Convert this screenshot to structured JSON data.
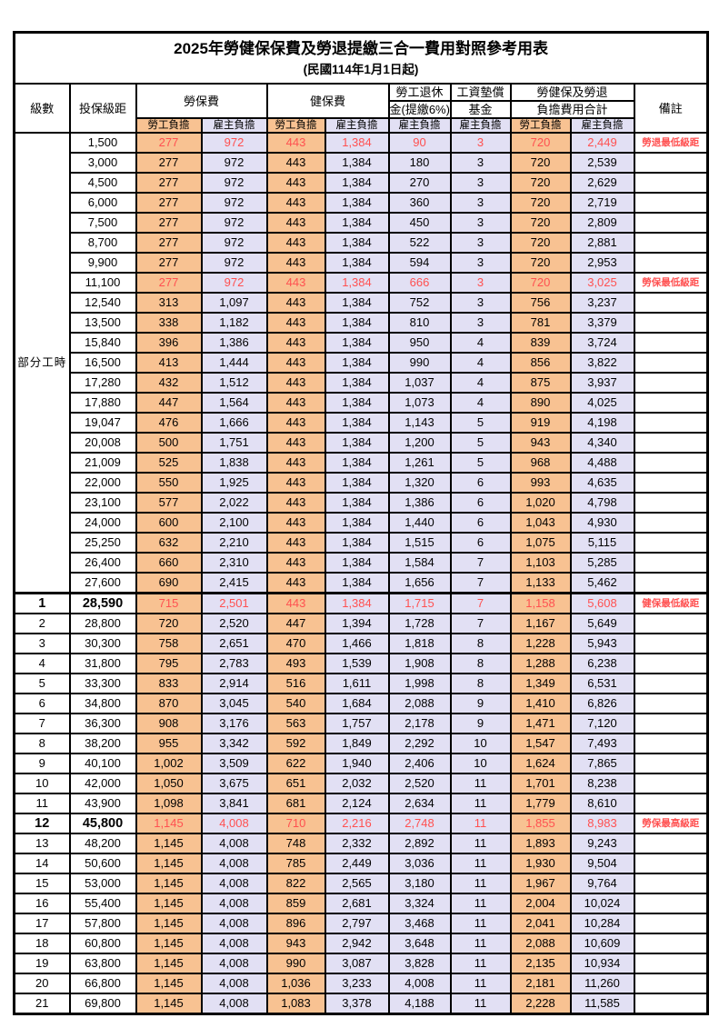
{
  "title": "2025年勞健保保費及勞退提繳三合一費用對照參考用表",
  "subtitle": "(民國114年1月1日起)",
  "colors": {
    "employee_fill": "#F8C292",
    "employer_fill": "#E2E0F4",
    "highlight_text": "#FF5050",
    "grid_border": "#000000"
  },
  "header": {
    "grade": "級數",
    "bracket": "投保級距",
    "labor_insurance": "勞保費",
    "health_insurance": "健保費",
    "pension_line1": "勞工退休",
    "pension_line2": "金(提繳6%)",
    "wage_fund_line1": "工資墊償",
    "wage_fund_line2": "基金",
    "total_line1": "勞健保及勞退",
    "total_line2": "負擔費用合計",
    "remark": "備註",
    "employee_share": "勞工負擔",
    "employer_share": "雇主負擔"
  },
  "part_time": {
    "label": "部分工時",
    "rowspan": 23
  },
  "rows": [
    {
      "bracket": "1,500",
      "values": [
        "277",
        "972",
        "443",
        "1,384",
        "90",
        "3",
        "720",
        "2,449"
      ],
      "red": true,
      "remark": "勞退最低級距"
    },
    {
      "bracket": "3,000",
      "values": [
        "277",
        "972",
        "443",
        "1,384",
        "180",
        "3",
        "720",
        "2,539"
      ]
    },
    {
      "bracket": "4,500",
      "values": [
        "277",
        "972",
        "443",
        "1,384",
        "270",
        "3",
        "720",
        "2,629"
      ]
    },
    {
      "bracket": "6,000",
      "values": [
        "277",
        "972",
        "443",
        "1,384",
        "360",
        "3",
        "720",
        "2,719"
      ]
    },
    {
      "bracket": "7,500",
      "values": [
        "277",
        "972",
        "443",
        "1,384",
        "450",
        "3",
        "720",
        "2,809"
      ]
    },
    {
      "bracket": "8,700",
      "values": [
        "277",
        "972",
        "443",
        "1,384",
        "522",
        "3",
        "720",
        "2,881"
      ]
    },
    {
      "bracket": "9,900",
      "values": [
        "277",
        "972",
        "443",
        "1,384",
        "594",
        "3",
        "720",
        "2,953"
      ]
    },
    {
      "bracket": "11,100",
      "values": [
        "277",
        "972",
        "443",
        "1,384",
        "666",
        "3",
        "720",
        "3,025"
      ],
      "red": true,
      "remark": "勞保最低級距"
    },
    {
      "bracket": "12,540",
      "values": [
        "313",
        "1,097",
        "443",
        "1,384",
        "752",
        "3",
        "756",
        "3,237"
      ]
    },
    {
      "bracket": "13,500",
      "values": [
        "338",
        "1,182",
        "443",
        "1,384",
        "810",
        "3",
        "781",
        "3,379"
      ]
    },
    {
      "bracket": "15,840",
      "values": [
        "396",
        "1,386",
        "443",
        "1,384",
        "950",
        "4",
        "839",
        "3,724"
      ]
    },
    {
      "bracket": "16,500",
      "values": [
        "413",
        "1,444",
        "443",
        "1,384",
        "990",
        "4",
        "856",
        "3,822"
      ]
    },
    {
      "bracket": "17,280",
      "values": [
        "432",
        "1,512",
        "443",
        "1,384",
        "1,037",
        "4",
        "875",
        "3,937"
      ]
    },
    {
      "bracket": "17,880",
      "values": [
        "447",
        "1,564",
        "443",
        "1,384",
        "1,073",
        "4",
        "890",
        "4,025"
      ]
    },
    {
      "bracket": "19,047",
      "values": [
        "476",
        "1,666",
        "443",
        "1,384",
        "1,143",
        "5",
        "919",
        "4,198"
      ]
    },
    {
      "bracket": "20,008",
      "values": [
        "500",
        "1,751",
        "443",
        "1,384",
        "1,200",
        "5",
        "943",
        "4,340"
      ]
    },
    {
      "bracket": "21,009",
      "values": [
        "525",
        "1,838",
        "443",
        "1,384",
        "1,261",
        "5",
        "968",
        "4,488"
      ]
    },
    {
      "bracket": "22,000",
      "values": [
        "550",
        "1,925",
        "443",
        "1,384",
        "1,320",
        "6",
        "993",
        "4,635"
      ]
    },
    {
      "bracket": "23,100",
      "values": [
        "577",
        "2,022",
        "443",
        "1,384",
        "1,386",
        "6",
        "1,020",
        "4,798"
      ]
    },
    {
      "bracket": "24,000",
      "values": [
        "600",
        "2,100",
        "443",
        "1,384",
        "1,440",
        "6",
        "1,043",
        "4,930"
      ]
    },
    {
      "bracket": "25,250",
      "values": [
        "632",
        "2,210",
        "443",
        "1,384",
        "1,515",
        "6",
        "1,075",
        "5,115"
      ]
    },
    {
      "bracket": "26,400",
      "values": [
        "660",
        "2,310",
        "443",
        "1,384",
        "1,584",
        "7",
        "1,103",
        "5,285"
      ]
    },
    {
      "bracket": "27,600",
      "values": [
        "690",
        "2,415",
        "443",
        "1,384",
        "1,656",
        "7",
        "1,133",
        "5,462"
      ]
    },
    {
      "grade": "1",
      "bracket": "28,590",
      "values": [
        "715",
        "2,501",
        "443",
        "1,384",
        "1,715",
        "7",
        "1,158",
        "5,608"
      ],
      "red": true,
      "bold": true,
      "remark": "健保最低級距"
    },
    {
      "grade": "2",
      "bracket": "28,800",
      "values": [
        "720",
        "2,520",
        "447",
        "1,394",
        "1,728",
        "7",
        "1,167",
        "5,649"
      ]
    },
    {
      "grade": "3",
      "bracket": "30,300",
      "values": [
        "758",
        "2,651",
        "470",
        "1,466",
        "1,818",
        "8",
        "1,228",
        "5,943"
      ]
    },
    {
      "grade": "4",
      "bracket": "31,800",
      "values": [
        "795",
        "2,783",
        "493",
        "1,539",
        "1,908",
        "8",
        "1,288",
        "6,238"
      ]
    },
    {
      "grade": "5",
      "bracket": "33,300",
      "values": [
        "833",
        "2,914",
        "516",
        "1,611",
        "1,998",
        "8",
        "1,349",
        "6,531"
      ]
    },
    {
      "grade": "6",
      "bracket": "34,800",
      "values": [
        "870",
        "3,045",
        "540",
        "1,684",
        "2,088",
        "9",
        "1,410",
        "6,826"
      ]
    },
    {
      "grade": "7",
      "bracket": "36,300",
      "values": [
        "908",
        "3,176",
        "563",
        "1,757",
        "2,178",
        "9",
        "1,471",
        "7,120"
      ]
    },
    {
      "grade": "8",
      "bracket": "38,200",
      "values": [
        "955",
        "3,342",
        "592",
        "1,849",
        "2,292",
        "10",
        "1,547",
        "7,493"
      ]
    },
    {
      "grade": "9",
      "bracket": "40,100",
      "values": [
        "1,002",
        "3,509",
        "622",
        "1,940",
        "2,406",
        "10",
        "1,624",
        "7,865"
      ]
    },
    {
      "grade": "10",
      "bracket": "42,000",
      "values": [
        "1,050",
        "3,675",
        "651",
        "2,032",
        "2,520",
        "11",
        "1,701",
        "8,238"
      ]
    },
    {
      "grade": "11",
      "bracket": "43,900",
      "values": [
        "1,098",
        "3,841",
        "681",
        "2,124",
        "2,634",
        "11",
        "1,779",
        "8,610"
      ]
    },
    {
      "grade": "12",
      "bracket": "45,800",
      "values": [
        "1,145",
        "4,008",
        "710",
        "2,216",
        "2,748",
        "11",
        "1,855",
        "8,983"
      ],
      "red": true,
      "bold": true,
      "remark": "勞保最高級距"
    },
    {
      "grade": "13",
      "bracket": "48,200",
      "values": [
        "1,145",
        "4,008",
        "748",
        "2,332",
        "2,892",
        "11",
        "1,893",
        "9,243"
      ]
    },
    {
      "grade": "14",
      "bracket": "50,600",
      "values": [
        "1,145",
        "4,008",
        "785",
        "2,449",
        "3,036",
        "11",
        "1,930",
        "9,504"
      ]
    },
    {
      "grade": "15",
      "bracket": "53,000",
      "values": [
        "1,145",
        "4,008",
        "822",
        "2,565",
        "3,180",
        "11",
        "1,967",
        "9,764"
      ]
    },
    {
      "grade": "16",
      "bracket": "55,400",
      "values": [
        "1,145",
        "4,008",
        "859",
        "2,681",
        "3,324",
        "11",
        "2,004",
        "10,024"
      ]
    },
    {
      "grade": "17",
      "bracket": "57,800",
      "values": [
        "1,145",
        "4,008",
        "896",
        "2,797",
        "3,468",
        "11",
        "2,041",
        "10,284"
      ]
    },
    {
      "grade": "18",
      "bracket": "60,800",
      "values": [
        "1,145",
        "4,008",
        "943",
        "2,942",
        "3,648",
        "11",
        "2,088",
        "10,609"
      ]
    },
    {
      "grade": "19",
      "bracket": "63,800",
      "values": [
        "1,145",
        "4,008",
        "990",
        "3,087",
        "3,828",
        "11",
        "2,135",
        "10,934"
      ]
    },
    {
      "grade": "20",
      "bracket": "66,800",
      "values": [
        "1,145",
        "4,008",
        "1,036",
        "3,233",
        "4,008",
        "11",
        "2,181",
        "11,260"
      ]
    },
    {
      "grade": "21",
      "bracket": "69,800",
      "values": [
        "1,145",
        "4,008",
        "1,083",
        "3,378",
        "4,188",
        "11",
        "2,228",
        "11,585"
      ]
    }
  ]
}
